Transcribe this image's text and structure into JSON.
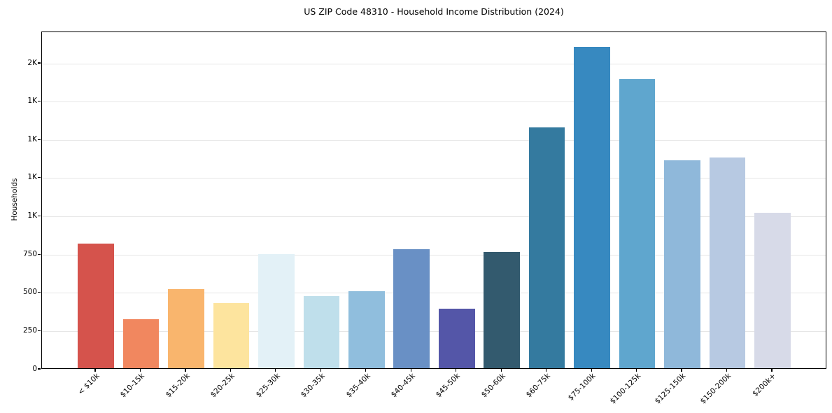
{
  "chart_data": {
    "type": "bar",
    "title": "US ZIP Code 48310 - Household Income Distribution (2024)",
    "xlabel": "",
    "ylabel": "Households",
    "categories": [
      "< $10k",
      "$10-15k",
      "$15-20k",
      "$20-25k",
      "$25-30k",
      "$30-35k",
      "$35-40k",
      "$40-45k",
      "$45-50k",
      "$50-60k",
      "$60-75k",
      "$75-100k",
      "$100-125k",
      "$125-150k",
      "$150-200k",
      "$200k+"
    ],
    "values": [
      815,
      320,
      517,
      425,
      748,
      471,
      505,
      777,
      391,
      762,
      1574,
      2100,
      1889,
      1361,
      1379,
      1014
    ],
    "bar_colors": [
      "#d5534c",
      "#f1875f",
      "#f9b56d",
      "#fde49e",
      "#e3f1f7",
      "#bfdfeb",
      "#90bedd",
      "#6990c5",
      "#5456a8",
      "#335a6e",
      "#347a9f",
      "#3789c0",
      "#5fa6ce",
      "#8fb8da",
      "#b7c9e2",
      "#d7dae8"
    ],
    "ylim": [
      0,
      2206
    ],
    "yticks": [
      {
        "value": 0,
        "label": "0"
      },
      {
        "value": 250,
        "label": "250"
      },
      {
        "value": 500,
        "label": "500"
      },
      {
        "value": 750,
        "label": "750"
      },
      {
        "value": 1000,
        "label": "1K"
      },
      {
        "value": 1250,
        "label": "1K"
      },
      {
        "value": 1500,
        "label": "1K"
      },
      {
        "value": 1750,
        "label": "1K"
      },
      {
        "value": 2000,
        "label": "2K"
      }
    ],
    "grid": "horizontal",
    "legend": "none",
    "background_color": "#ffffff",
    "axis_color": "#000000",
    "gridline_color": "#e6e6e6"
  }
}
